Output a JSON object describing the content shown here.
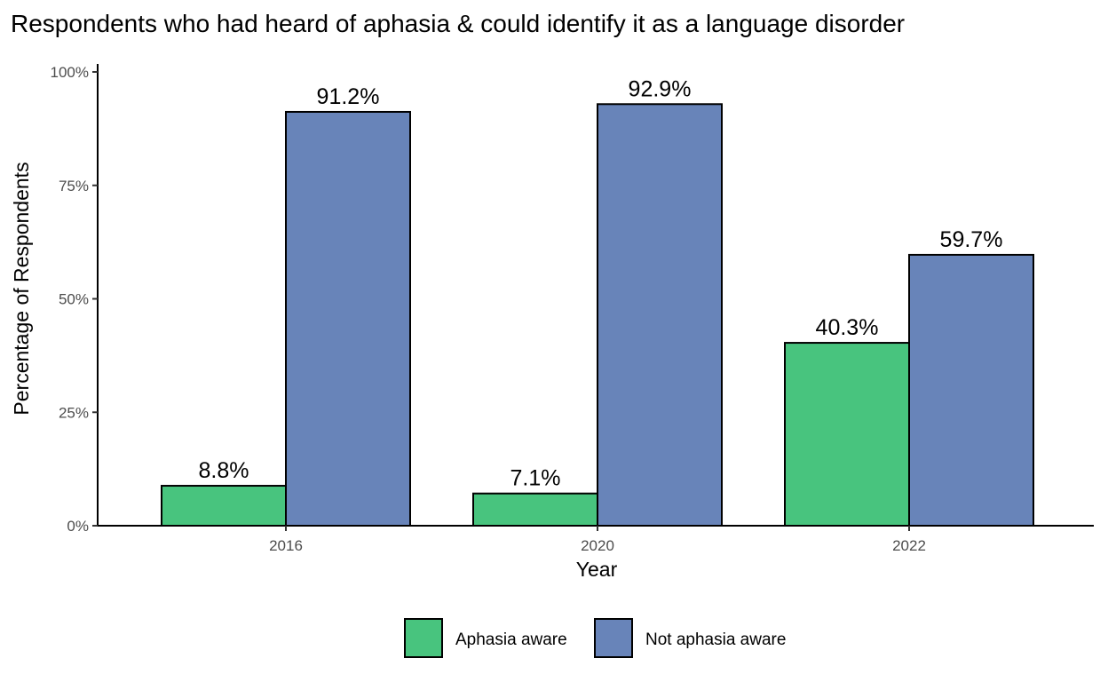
{
  "chart_data": {
    "type": "bar",
    "title": "Respondents who had heard of aphasia & could identify it as a language disorder",
    "xlabel": "Year",
    "ylabel": "Percentage of Respondents",
    "categories": [
      "2016",
      "2020",
      "2022"
    ],
    "series": [
      {
        "name": "Aphasia aware",
        "color": "#48c47e",
        "values": [
          8.8,
          7.1,
          40.3
        ],
        "labels": [
          "8.8%",
          "7.1%",
          "40.3%"
        ]
      },
      {
        "name": "Not aphasia aware",
        "color": "#6884b9",
        "values": [
          91.2,
          92.9,
          59.7
        ],
        "labels": [
          "91.2%",
          "92.9%",
          "59.7%"
        ]
      }
    ],
    "ylim": [
      0,
      100
    ],
    "yticks": [
      0,
      25,
      50,
      75,
      100
    ],
    "ytick_labels": [
      "0%",
      "25%",
      "50%",
      "75%",
      "100%"
    ],
    "grid": false,
    "legend_position": "bottom"
  }
}
